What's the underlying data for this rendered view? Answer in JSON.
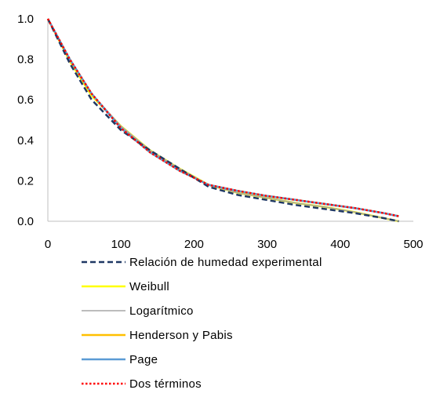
{
  "chart_data": {
    "type": "line",
    "title": "",
    "xlabel": "",
    "ylabel": "",
    "xlim": [
      0,
      500
    ],
    "ylim": [
      0,
      1.0
    ],
    "x_ticks": [
      "0",
      "100",
      "200",
      "300",
      "400",
      "500"
    ],
    "y_ticks": [
      "0.0",
      "0.2",
      "0.4",
      "0.6",
      "0.8",
      "1.0"
    ],
    "grid": false,
    "legend_position": "bottom",
    "series": [
      {
        "name": "Relación de humedad experimental",
        "color": "#1F3864",
        "style": "dashed",
        "x": [
          0,
          30,
          60,
          100,
          140,
          180,
          220,
          260,
          300,
          340,
          380,
          420,
          460,
          480
        ],
        "y": [
          1.0,
          0.78,
          0.6,
          0.45,
          0.35,
          0.26,
          0.17,
          0.13,
          0.105,
          0.08,
          0.06,
          0.04,
          0.015,
          0.0
        ]
      },
      {
        "name": "Weibull",
        "color": "#FFFF00",
        "style": "solid",
        "x": [
          0,
          30,
          60,
          100,
          140,
          180,
          220,
          260,
          300,
          340,
          380,
          420,
          460,
          480
        ],
        "y": [
          1.0,
          0.79,
          0.62,
          0.47,
          0.35,
          0.26,
          0.18,
          0.14,
          0.115,
          0.09,
          0.07,
          0.045,
          0.015,
          0.0
        ]
      },
      {
        "name": "Logarítmico",
        "color": "#A5A5A5",
        "style": "solid",
        "x": [
          0,
          30,
          60,
          100,
          140,
          180,
          220,
          260,
          300,
          340,
          380,
          420,
          460,
          480
        ],
        "y": [
          1.0,
          0.8,
          0.63,
          0.47,
          0.35,
          0.26,
          0.18,
          0.14,
          0.115,
          0.09,
          0.07,
          0.045,
          0.015,
          0.0
        ]
      },
      {
        "name": "Henderson y Pabis",
        "color": "#FFC000",
        "style": "solid",
        "x": [
          0,
          30,
          60,
          100,
          140,
          180,
          220,
          260,
          300,
          340,
          380,
          420,
          460,
          480
        ],
        "y": [
          1.0,
          0.8,
          0.63,
          0.46,
          0.34,
          0.25,
          0.18,
          0.15,
          0.125,
          0.105,
          0.085,
          0.065,
          0.04,
          0.025
        ]
      },
      {
        "name": "Page",
        "color": "#5B9BD5",
        "style": "solid",
        "x": [
          0,
          30,
          60,
          100,
          140,
          180,
          220,
          260,
          300,
          340,
          380,
          420,
          460,
          480
        ],
        "y": [
          1.0,
          0.8,
          0.63,
          0.46,
          0.34,
          0.25,
          0.18,
          0.15,
          0.125,
          0.105,
          0.085,
          0.065,
          0.04,
          0.025
        ]
      },
      {
        "name": "Dos términos",
        "color": "#FF0000",
        "style": "dotted",
        "x": [
          0,
          30,
          60,
          100,
          140,
          180,
          220,
          260,
          300,
          340,
          380,
          420,
          460,
          480
        ],
        "y": [
          1.0,
          0.8,
          0.63,
          0.46,
          0.34,
          0.25,
          0.18,
          0.15,
          0.125,
          0.105,
          0.085,
          0.065,
          0.04,
          0.025
        ]
      }
    ]
  }
}
